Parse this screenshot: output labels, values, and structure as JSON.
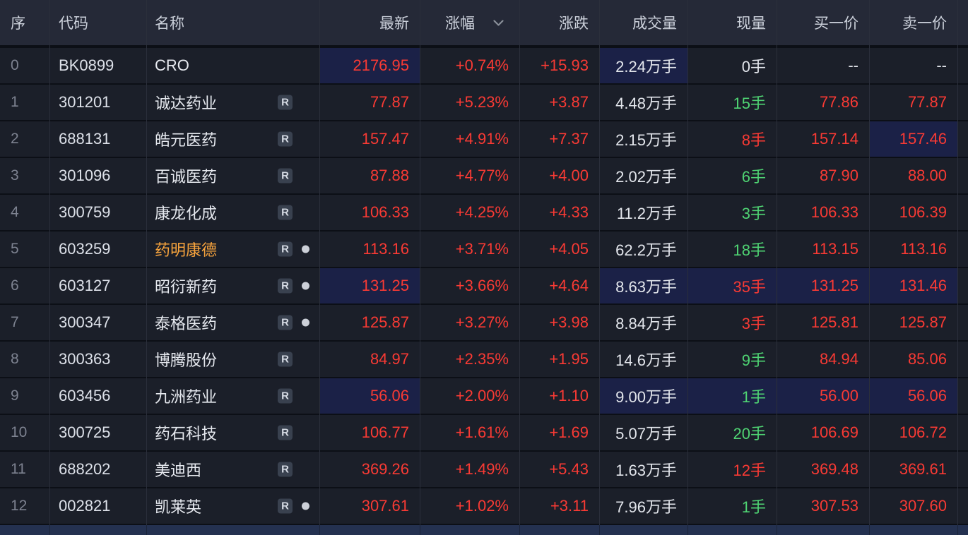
{
  "colors": {
    "up_red": "#f93a34",
    "down_green": "#4fd473",
    "neutral_white": "#e3e6ec",
    "highlight_cell": "#1b2147",
    "row_bg": "#1b1f29",
    "header_bg": "#252937",
    "name_accent_orange": "#f8a43d",
    "partial_row_bg": "#243150"
  },
  "table": {
    "columns": [
      {
        "id": "index",
        "label": "序",
        "align": "left"
      },
      {
        "id": "code",
        "label": "代码",
        "align": "left"
      },
      {
        "id": "name",
        "label": "名称",
        "align": "left"
      },
      {
        "id": "last",
        "label": "最新",
        "align": "right"
      },
      {
        "id": "change_pct",
        "label": "涨幅",
        "align": "right",
        "sort_icon": "chevron-down"
      },
      {
        "id": "change",
        "label": "涨跌",
        "align": "right"
      },
      {
        "id": "volume",
        "label": "成交量",
        "align": "right"
      },
      {
        "id": "current_volume",
        "label": "现量",
        "align": "right"
      },
      {
        "id": "bid1",
        "label": "买一价",
        "align": "right"
      },
      {
        "id": "ask1",
        "label": "卖一价",
        "align": "right"
      }
    ],
    "rows": [
      {
        "index": "0",
        "code": "BK0899",
        "name": "CRO",
        "name_color": "white",
        "has_r_badge": false,
        "has_dot": false,
        "last": "2176.95",
        "change_pct": "+0.74%",
        "change": "+15.93",
        "volume": "2.24万手",
        "current_volume": "0手",
        "current_volume_color": "w",
        "bid1": "--",
        "ask1": "--",
        "quote_color": "w",
        "highlighted_cells": [
          "last",
          "volume"
        ]
      },
      {
        "index": "1",
        "code": "301201",
        "name": "诚达药业",
        "name_color": "white",
        "has_r_badge": true,
        "has_dot": false,
        "last": "77.87",
        "change_pct": "+5.23%",
        "change": "+3.87",
        "volume": "4.48万手",
        "current_volume": "15手",
        "current_volume_color": "g",
        "bid1": "77.86",
        "ask1": "77.87",
        "quote_color": "r",
        "highlighted_cells": []
      },
      {
        "index": "2",
        "code": "688131",
        "name": "皓元医药",
        "name_color": "white",
        "has_r_badge": true,
        "has_dot": false,
        "last": "157.47",
        "change_pct": "+4.91%",
        "change": "+7.37",
        "volume": "2.15万手",
        "current_volume": "8手",
        "current_volume_color": "r",
        "bid1": "157.14",
        "ask1": "157.46",
        "quote_color": "r",
        "highlighted_cells": [
          "ask1"
        ]
      },
      {
        "index": "3",
        "code": "301096",
        "name": "百诚医药",
        "name_color": "white",
        "has_r_badge": true,
        "has_dot": false,
        "last": "87.88",
        "change_pct": "+4.77%",
        "change": "+4.00",
        "volume": "2.02万手",
        "current_volume": "6手",
        "current_volume_color": "g",
        "bid1": "87.90",
        "ask1": "88.00",
        "quote_color": "r",
        "highlighted_cells": []
      },
      {
        "index": "4",
        "code": "300759",
        "name": "康龙化成",
        "name_color": "white",
        "has_r_badge": true,
        "has_dot": false,
        "last": "106.33",
        "change_pct": "+4.25%",
        "change": "+4.33",
        "volume": "11.2万手",
        "current_volume": "3手",
        "current_volume_color": "g",
        "bid1": "106.33",
        "ask1": "106.39",
        "quote_color": "r",
        "highlighted_cells": []
      },
      {
        "index": "5",
        "code": "603259",
        "name": "药明康德",
        "name_color": "orange",
        "has_r_badge": true,
        "has_dot": true,
        "last": "113.16",
        "change_pct": "+3.71%",
        "change": "+4.05",
        "volume": "62.2万手",
        "current_volume": "18手",
        "current_volume_color": "g",
        "bid1": "113.15",
        "ask1": "113.16",
        "quote_color": "r",
        "highlighted_cells": []
      },
      {
        "index": "6",
        "code": "603127",
        "name": "昭衍新药",
        "name_color": "white",
        "has_r_badge": true,
        "has_dot": true,
        "last": "131.25",
        "change_pct": "+3.66%",
        "change": "+4.64",
        "volume": "8.63万手",
        "current_volume": "35手",
        "current_volume_color": "r",
        "bid1": "131.25",
        "ask1": "131.46",
        "quote_color": "r",
        "highlighted_cells": [
          "last",
          "volume",
          "current_volume",
          "bid1",
          "ask1"
        ]
      },
      {
        "index": "7",
        "code": "300347",
        "name": "泰格医药",
        "name_color": "white",
        "has_r_badge": true,
        "has_dot": true,
        "last": "125.87",
        "change_pct": "+3.27%",
        "change": "+3.98",
        "volume": "8.84万手",
        "current_volume": "3手",
        "current_volume_color": "r",
        "bid1": "125.81",
        "ask1": "125.87",
        "quote_color": "r",
        "highlighted_cells": []
      },
      {
        "index": "8",
        "code": "300363",
        "name": "博腾股份",
        "name_color": "white",
        "has_r_badge": true,
        "has_dot": false,
        "last": "84.97",
        "change_pct": "+2.35%",
        "change": "+1.95",
        "volume": "14.6万手",
        "current_volume": "9手",
        "current_volume_color": "g",
        "bid1": "84.94",
        "ask1": "85.06",
        "quote_color": "r",
        "highlighted_cells": []
      },
      {
        "index": "9",
        "code": "603456",
        "name": "九洲药业",
        "name_color": "white",
        "has_r_badge": true,
        "has_dot": false,
        "last": "56.06",
        "change_pct": "+2.00%",
        "change": "+1.10",
        "volume": "9.00万手",
        "current_volume": "1手",
        "current_volume_color": "g",
        "bid1": "56.00",
        "ask1": "56.06",
        "quote_color": "r",
        "highlighted_cells": [
          "last",
          "volume",
          "current_volume",
          "bid1",
          "ask1"
        ]
      },
      {
        "index": "10",
        "code": "300725",
        "name": "药石科技",
        "name_color": "white",
        "has_r_badge": true,
        "has_dot": false,
        "last": "106.77",
        "change_pct": "+1.61%",
        "change": "+1.69",
        "volume": "5.07万手",
        "current_volume": "20手",
        "current_volume_color": "g",
        "bid1": "106.69",
        "ask1": "106.72",
        "quote_color": "r",
        "highlighted_cells": []
      },
      {
        "index": "11",
        "code": "688202",
        "name": "美迪西",
        "name_color": "white",
        "has_r_badge": true,
        "has_dot": false,
        "last": "369.26",
        "change_pct": "+1.49%",
        "change": "+5.43",
        "volume": "1.63万手",
        "current_volume": "12手",
        "current_volume_color": "r",
        "bid1": "369.48",
        "ask1": "369.61",
        "quote_color": "r",
        "highlighted_cells": []
      },
      {
        "index": "12",
        "code": "002821",
        "name": "凯莱英",
        "name_color": "white",
        "has_r_badge": true,
        "has_dot": true,
        "last": "307.61",
        "change_pct": "+1.02%",
        "change": "+3.11",
        "volume": "7.96万手",
        "current_volume": "1手",
        "current_volume_color": "g",
        "bid1": "307.53",
        "ask1": "307.60",
        "quote_color": "r",
        "highlighted_cells": []
      }
    ]
  },
  "badge": {
    "r_label": "R"
  }
}
